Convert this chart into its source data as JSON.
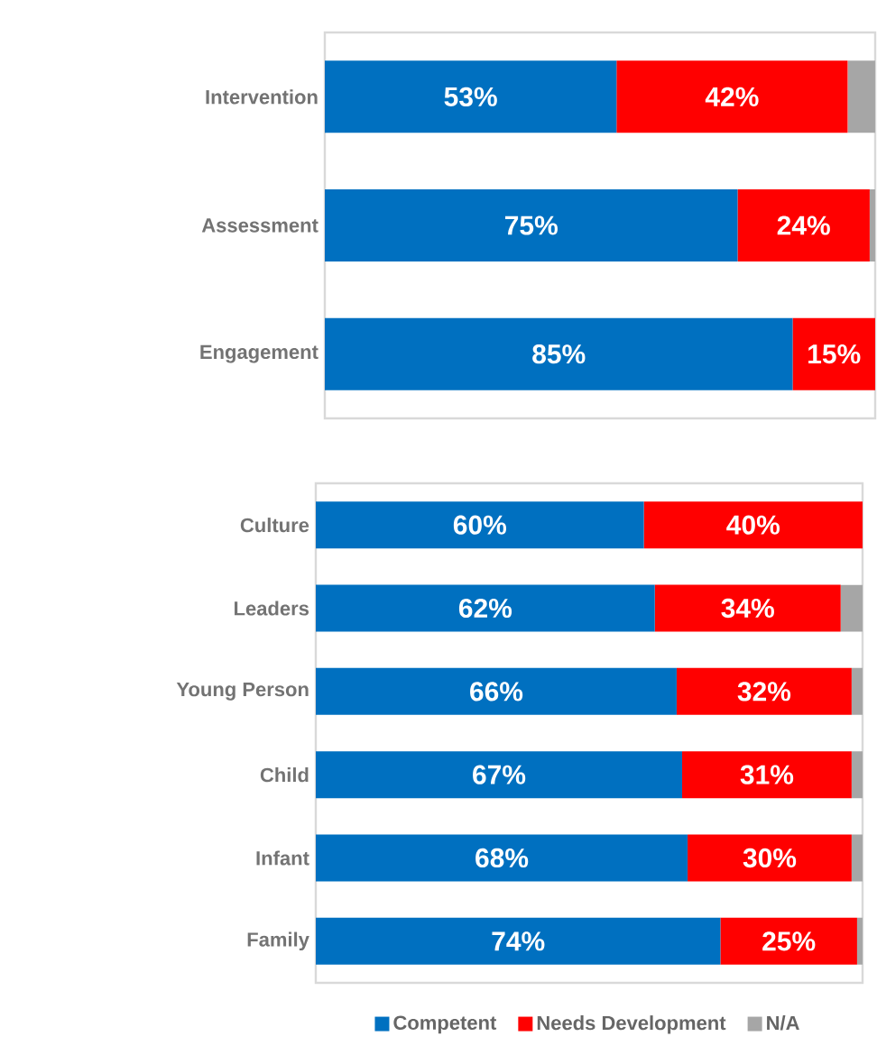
{
  "chart_data": [
    {
      "type": "bar",
      "orientation": "horizontal",
      "stacked": true,
      "tick_labels": "y",
      "xlim": [
        0,
        100
      ],
      "categories": [
        "Intervention",
        "Assessment",
        "Engagement"
      ],
      "series": [
        {
          "color": "#0070c0",
          "values": [
            53,
            75,
            85
          ],
          "value_labels": [
            "53%",
            "75%",
            "85%"
          ]
        },
        {
          "color": "#ff0000",
          "values": [
            42,
            24,
            15
          ],
          "value_labels": [
            "42%",
            "24%",
            "15%"
          ]
        },
        {
          "color": "#a6a6a6",
          "values": [
            5,
            1,
            0
          ]
        }
      ]
    },
    {
      "type": "bar",
      "orientation": "horizontal",
      "stacked": true,
      "tick_labels": "y",
      "xlim": [
        0,
        100
      ],
      "legend": "bottom",
      "categories": [
        "Culture",
        "Leaders",
        "Young Person",
        "Child",
        "Infant",
        "Family"
      ],
      "series": [
        {
          "name": "Competent",
          "color": "#0070c0",
          "values": [
            60,
            62,
            66,
            67,
            68,
            74
          ],
          "value_labels": [
            "60%",
            "62%",
            "66%",
            "67%",
            "68%",
            "74%"
          ]
        },
        {
          "name": "Needs Development",
          "color": "#ff0000",
          "values": [
            40,
            34,
            32,
            31,
            30,
            25
          ],
          "value_labels": [
            "40%",
            "34%",
            "32%",
            "31%",
            "30%",
            "25%"
          ]
        },
        {
          "name": "N/A",
          "color": "#a6a6a6",
          "values": [
            0,
            4,
            2,
            2,
            2,
            1
          ]
        }
      ]
    }
  ]
}
